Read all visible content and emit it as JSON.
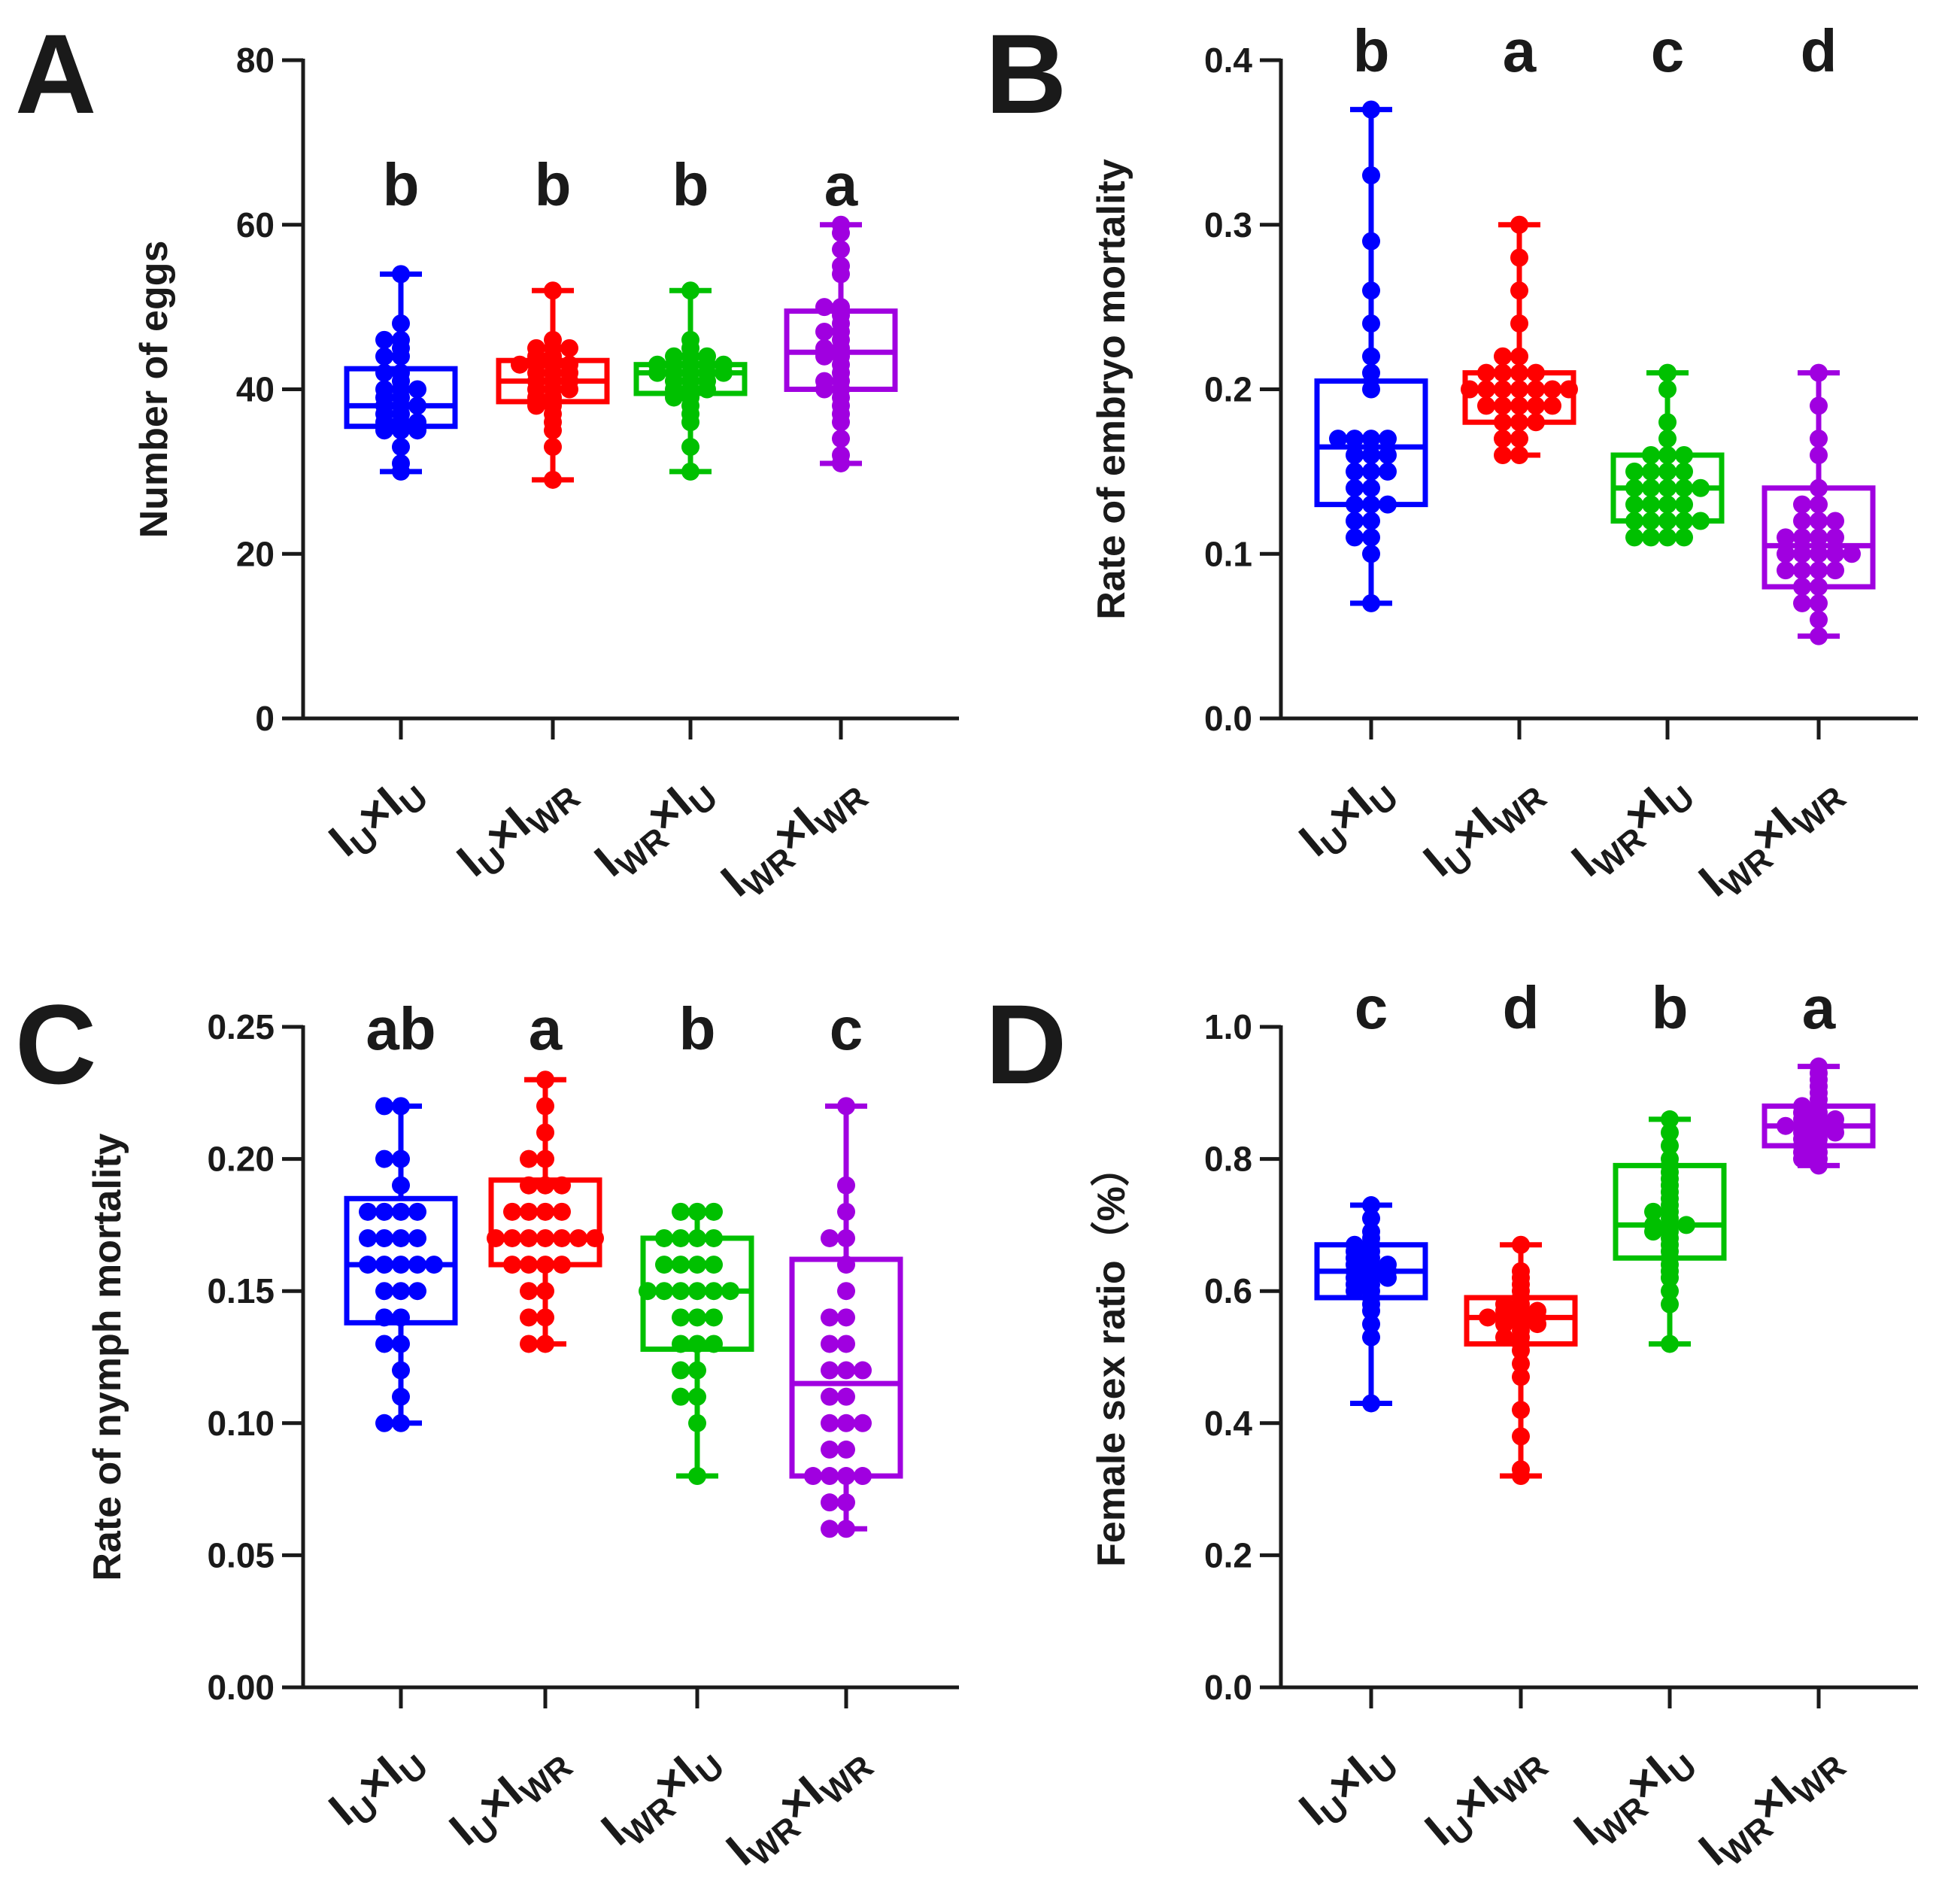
{
  "colors": {
    "IU_x_IU": "#0000ff",
    "IU_x_IWR": "#ff0000",
    "IWR_x_IU": "#00c000",
    "IWR_x_IWR": "#a000e0",
    "axis": "#1a1a1a"
  },
  "categories": [
    {
      "main1": "I",
      "sub1": "U",
      "sep": "×",
      "main2": "I",
      "sub2": "U"
    },
    {
      "main1": "I",
      "sub1": "U",
      "sep": "×",
      "main2": "I",
      "sub2": "WR"
    },
    {
      "main1": "I",
      "sub1": "WR",
      "sep": "×",
      "main2": "I",
      "sub2": "U"
    },
    {
      "main1": "I",
      "sub1": "WR",
      "sep": "×",
      "main2": "I",
      "sub2": "WR"
    }
  ],
  "chart_data": [
    {
      "type": "box",
      "panel": "A",
      "ylabel": "Number of eggs",
      "ylim": [
        0,
        80
      ],
      "yticks": [
        "0",
        "20",
        "40",
        "60",
        "80"
      ],
      "categories": [
        "IU×IU",
        "IU×IWR",
        "IWR×IU",
        "IWR×IWR"
      ],
      "significance": [
        "b",
        "b",
        "b",
        "a"
      ],
      "boxes": [
        {
          "min": 30,
          "q1": 35.5,
          "median": 38,
          "q3": 42.5,
          "max": 54
        },
        {
          "min": 29,
          "q1": 38.5,
          "median": 41,
          "q3": 43.5,
          "max": 52
        },
        {
          "min": 30,
          "q1": 39.5,
          "median": 42,
          "q3": 43,
          "max": 52
        },
        {
          "min": 31,
          "q1": 40,
          "median": 44.5,
          "q3": 49.5,
          "max": 60
        }
      ],
      "points": [
        [
          54,
          48,
          46,
          46,
          45,
          44,
          42,
          41,
          40,
          40,
          39,
          39,
          38,
          38,
          38,
          37,
          37,
          36,
          36,
          36,
          35,
          35,
          35,
          33,
          31,
          30,
          42,
          44,
          40
        ],
        [
          52,
          46,
          45,
          45,
          45,
          44,
          44,
          43,
          43,
          43,
          42,
          42,
          41,
          41,
          41,
          40,
          40,
          39,
          39,
          38,
          38,
          37,
          36,
          35,
          33,
          29,
          43,
          42,
          40
        ],
        [
          52,
          46,
          45,
          44,
          44,
          43,
          43,
          43,
          43,
          42,
          42,
          42,
          42,
          41,
          41,
          41,
          40,
          40,
          40,
          39,
          39,
          38,
          37,
          36,
          33,
          30,
          43,
          44,
          42
        ],
        [
          60,
          59,
          57,
          55,
          54,
          50,
          50,
          49,
          48,
          47,
          47,
          46,
          45,
          45,
          44,
          44,
          43,
          42,
          41,
          41,
          40,
          40,
          39,
          38,
          37,
          36,
          34,
          32,
          31
        ]
      ]
    },
    {
      "type": "box",
      "panel": "B",
      "ylabel": "Rate of embryo mortality",
      "ylim": [
        0,
        0.4
      ],
      "yticks": [
        "0.0",
        "0.1",
        "0.2",
        "0.3",
        "0.4"
      ],
      "categories": [
        "IU×IU",
        "IU×IWR",
        "IWR×IU",
        "IWR×IWR"
      ],
      "significance": [
        "b",
        "a",
        "c",
        "d"
      ],
      "boxes": [
        {
          "min": 0.07,
          "q1": 0.13,
          "median": 0.165,
          "q3": 0.205,
          "max": 0.37
        },
        {
          "min": 0.16,
          "q1": 0.18,
          "median": 0.2,
          "q3": 0.21,
          "max": 0.3
        },
        {
          "min": 0.11,
          "q1": 0.12,
          "median": 0.14,
          "q3": 0.16,
          "max": 0.21
        },
        {
          "min": 0.05,
          "q1": 0.08,
          "median": 0.105,
          "q3": 0.14,
          "max": 0.21
        }
      ],
      "points": [
        [
          0.37,
          0.33,
          0.29,
          0.26,
          0.24,
          0.22,
          0.21,
          0.2,
          0.17,
          0.17,
          0.17,
          0.16,
          0.16,
          0.15,
          0.15,
          0.14,
          0.14,
          0.13,
          0.13,
          0.12,
          0.12,
          0.11,
          0.11,
          0.1,
          0.07,
          0.16,
          0.17,
          0.13,
          0.15
        ],
        [
          0.3,
          0.28,
          0.26,
          0.24,
          0.22,
          0.22,
          0.21,
          0.21,
          0.21,
          0.2,
          0.2,
          0.2,
          0.2,
          0.2,
          0.19,
          0.19,
          0.19,
          0.19,
          0.18,
          0.18,
          0.18,
          0.17,
          0.17,
          0.16,
          0.16,
          0.2,
          0.19,
          0.21,
          0.2
        ],
        [
          0.21,
          0.2,
          0.18,
          0.17,
          0.16,
          0.16,
          0.16,
          0.15,
          0.15,
          0.15,
          0.14,
          0.14,
          0.14,
          0.14,
          0.13,
          0.13,
          0.13,
          0.12,
          0.12,
          0.12,
          0.12,
          0.11,
          0.11,
          0.11,
          0.11,
          0.14,
          0.13,
          0.15,
          0.12
        ],
        [
          0.21,
          0.19,
          0.17,
          0.16,
          0.14,
          0.13,
          0.13,
          0.12,
          0.12,
          0.11,
          0.11,
          0.11,
          0.1,
          0.1,
          0.1,
          0.1,
          0.09,
          0.09,
          0.09,
          0.08,
          0.08,
          0.07,
          0.07,
          0.06,
          0.05,
          0.1,
          0.11,
          0.12,
          0.09
        ]
      ]
    },
    {
      "type": "box",
      "panel": "C",
      "ylabel": "Rate of nymph mortality",
      "ylim": [
        0,
        0.25
      ],
      "yticks": [
        "0.00",
        "0.05",
        "0.10",
        "0.15",
        "0.20",
        "0.25"
      ],
      "categories": [
        "IU×IU",
        "IU×IWR",
        "IWR×IU",
        "IWR×IWR"
      ],
      "significance": [
        "ab",
        "a",
        "b",
        "c"
      ],
      "boxes": [
        {
          "min": 0.1,
          "q1": 0.138,
          "median": 0.16,
          "q3": 0.185,
          "max": 0.22
        },
        {
          "min": 0.13,
          "q1": 0.16,
          "median": 0.17,
          "q3": 0.192,
          "max": 0.23
        },
        {
          "min": 0.08,
          "q1": 0.128,
          "median": 0.15,
          "q3": 0.17,
          "max": 0.18
        },
        {
          "min": 0.06,
          "q1": 0.08,
          "median": 0.115,
          "q3": 0.162,
          "max": 0.22
        }
      ],
      "points": [
        [
          0.22,
          0.22,
          0.2,
          0.2,
          0.19,
          0.18,
          0.18,
          0.18,
          0.17,
          0.17,
          0.17,
          0.16,
          0.16,
          0.16,
          0.16,
          0.15,
          0.15,
          0.14,
          0.14,
          0.13,
          0.13,
          0.12,
          0.11,
          0.1,
          0.1,
          0.16,
          0.17,
          0.15,
          0.18
        ],
        [
          0.23,
          0.22,
          0.21,
          0.2,
          0.2,
          0.19,
          0.19,
          0.18,
          0.18,
          0.18,
          0.17,
          0.17,
          0.17,
          0.17,
          0.17,
          0.16,
          0.16,
          0.16,
          0.15,
          0.15,
          0.14,
          0.14,
          0.13,
          0.13,
          0.17,
          0.18,
          0.16,
          0.17,
          0.19
        ],
        [
          0.18,
          0.18,
          0.18,
          0.17,
          0.17,
          0.17,
          0.16,
          0.16,
          0.16,
          0.15,
          0.15,
          0.15,
          0.15,
          0.14,
          0.14,
          0.13,
          0.13,
          0.12,
          0.12,
          0.11,
          0.11,
          0.1,
          0.08,
          0.15,
          0.16,
          0.14,
          0.17,
          0.13,
          0.15
        ],
        [
          0.22,
          0.19,
          0.18,
          0.17,
          0.17,
          0.16,
          0.15,
          0.14,
          0.13,
          0.13,
          0.12,
          0.12,
          0.11,
          0.11,
          0.1,
          0.1,
          0.09,
          0.09,
          0.08,
          0.08,
          0.08,
          0.07,
          0.07,
          0.06,
          0.06,
          0.12,
          0.1,
          0.14,
          0.08
        ]
      ]
    },
    {
      "type": "box",
      "panel": "D",
      "ylabel": "Female sex ratio（%）",
      "ylim": [
        0,
        1.0
      ],
      "yticks": [
        "0.0",
        "0.2",
        "0.4",
        "0.6",
        "0.8",
        "1.0"
      ],
      "categories": [
        "IU×IU",
        "IU×IWR",
        "IWR×IU",
        "IWR×IWR"
      ],
      "significance": [
        "c",
        "d",
        "b",
        "a"
      ],
      "boxes": [
        {
          "min": 0.43,
          "q1": 0.59,
          "median": 0.63,
          "q3": 0.67,
          "max": 0.73
        },
        {
          "min": 0.32,
          "q1": 0.52,
          "median": 0.56,
          "q3": 0.59,
          "max": 0.67
        },
        {
          "min": 0.52,
          "q1": 0.65,
          "median": 0.7,
          "q3": 0.79,
          "max": 0.86
        },
        {
          "min": 0.79,
          "q1": 0.82,
          "median": 0.85,
          "q3": 0.88,
          "max": 0.94
        }
      ],
      "points": [
        [
          0.73,
          0.71,
          0.69,
          0.68,
          0.67,
          0.67,
          0.66,
          0.65,
          0.65,
          0.64,
          0.64,
          0.63,
          0.63,
          0.62,
          0.62,
          0.61,
          0.6,
          0.6,
          0.59,
          0.58,
          0.57,
          0.55,
          0.53,
          0.43,
          0.63,
          0.66,
          0.61,
          0.64,
          0.62
        ],
        [
          0.67,
          0.63,
          0.62,
          0.61,
          0.6,
          0.59,
          0.58,
          0.58,
          0.57,
          0.57,
          0.56,
          0.56,
          0.56,
          0.55,
          0.55,
          0.54,
          0.53,
          0.53,
          0.52,
          0.51,
          0.49,
          0.47,
          0.42,
          0.38,
          0.33,
          0.32,
          0.56,
          0.57,
          0.55
        ],
        [
          0.86,
          0.84,
          0.82,
          0.8,
          0.79,
          0.78,
          0.77,
          0.76,
          0.75,
          0.74,
          0.73,
          0.72,
          0.71,
          0.7,
          0.7,
          0.69,
          0.68,
          0.67,
          0.66,
          0.65,
          0.64,
          0.63,
          0.62,
          0.6,
          0.58,
          0.52,
          0.7,
          0.72,
          0.69
        ],
        [
          0.94,
          0.93,
          0.92,
          0.91,
          0.9,
          0.89,
          0.88,
          0.88,
          0.87,
          0.87,
          0.86,
          0.86,
          0.85,
          0.85,
          0.85,
          0.84,
          0.84,
          0.84,
          0.83,
          0.83,
          0.82,
          0.82,
          0.81,
          0.81,
          0.8,
          0.8,
          0.79,
          0.86,
          0.85
        ]
      ]
    }
  ]
}
